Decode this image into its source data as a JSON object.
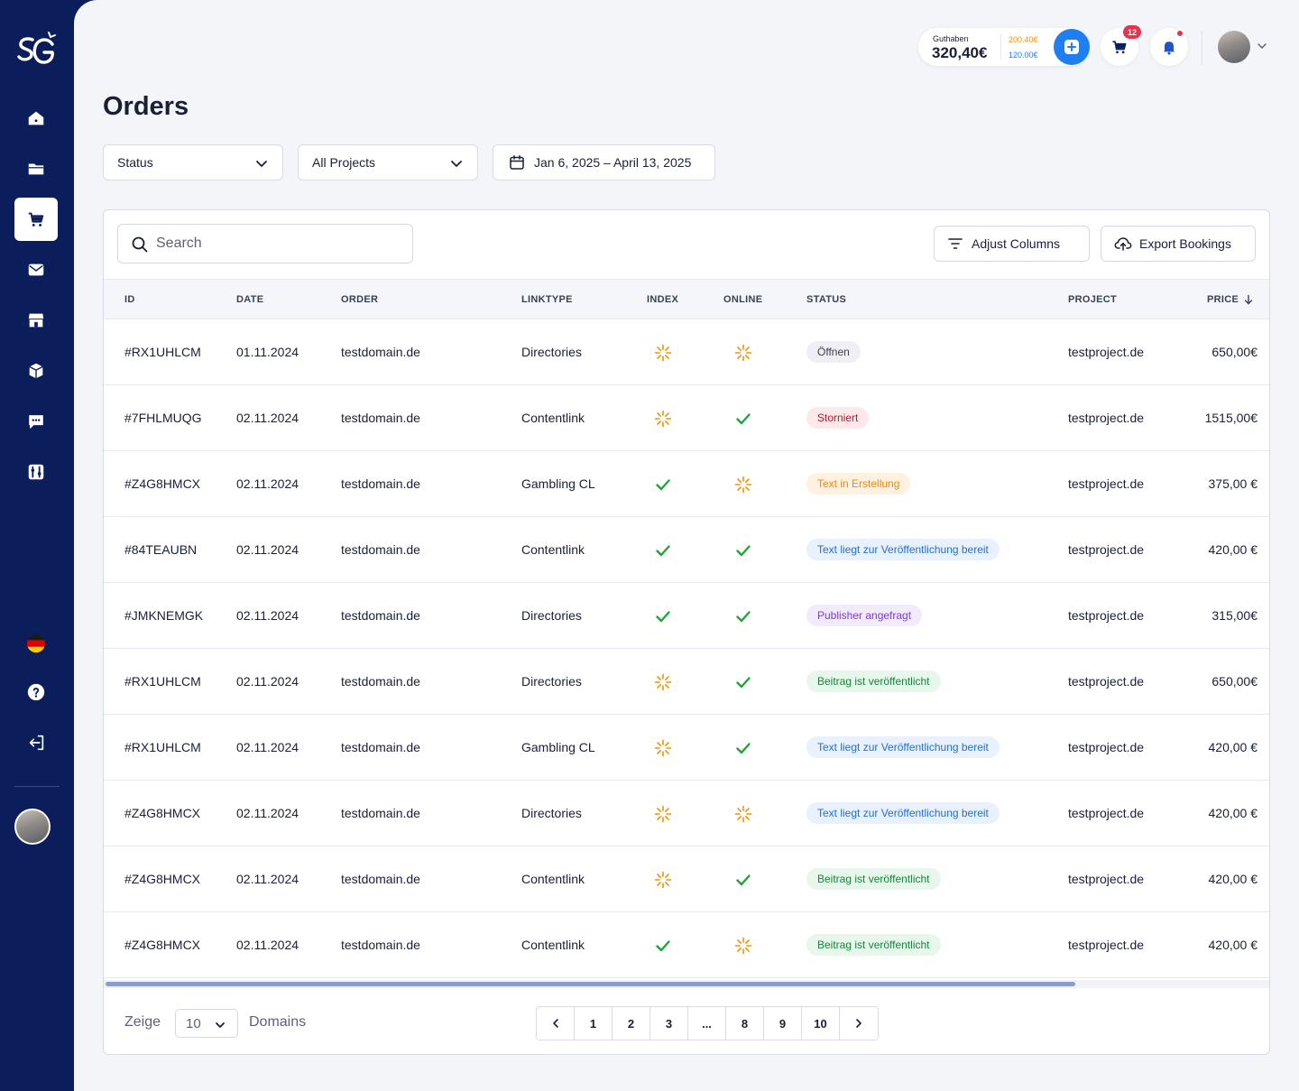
{
  "app": {
    "logo": "sg-logo"
  },
  "sidebar": {
    "items": [
      {
        "name": "home-icon",
        "active": false
      },
      {
        "name": "folder-icon",
        "active": false
      },
      {
        "name": "cart-icon",
        "active": true
      },
      {
        "name": "mail-icon",
        "active": false
      },
      {
        "name": "store-icon",
        "active": false
      },
      {
        "name": "box-icon",
        "active": false
      },
      {
        "name": "chat-icon",
        "active": false
      },
      {
        "name": "tools-icon",
        "active": false
      }
    ],
    "bottom": [
      "german-flag-icon",
      "help-icon",
      "logout-icon"
    ]
  },
  "topbar": {
    "balance_label": "Guthaben",
    "balance_value": "320,40€",
    "balance_sub1": "200.40€",
    "balance_sub2": "120.00€",
    "cart_count": "12"
  },
  "page": {
    "title": "Orders"
  },
  "filters": {
    "status": "Status",
    "projects": "All Projects",
    "date_range": "Jan 6, 2025 – April 13, 2025"
  },
  "toolbar": {
    "search_placeholder": "Search",
    "adjust_columns": "Adjust Columns",
    "export_bookings": "Export Bookings"
  },
  "table": {
    "headers": {
      "id": "ID",
      "date": "DATE",
      "order": "ORDER",
      "linktype": "LINKTYPE",
      "index": "INDEX",
      "online": "ONLINE",
      "status": "STATUS",
      "project": "PROJECT",
      "price": "PRICE"
    },
    "rows": [
      {
        "id": "#RX1UHLCM",
        "date": "01.11.2024",
        "order": "testdomain.de",
        "linktype": "Directories",
        "index": "pending",
        "online": "pending",
        "status": "Öffnen",
        "status_kind": "grey",
        "project": "testproject.de",
        "price": "650,00€"
      },
      {
        "id": "#7FHLMUQG",
        "date": "02.11.2024",
        "order": "testdomain.de",
        "linktype": "Contentlink",
        "index": "pending",
        "online": "done",
        "status": "Storniert",
        "status_kind": "red",
        "project": "testproject.de",
        "price": "1515,00€"
      },
      {
        "id": "#Z4G8HMCX",
        "date": "02.11.2024",
        "order": "testdomain.de",
        "linktype": "Gambling CL",
        "index": "done",
        "online": "pending",
        "status": "Text in Erstellung",
        "status_kind": "orange",
        "project": "testproject.de",
        "price": "375,00 €"
      },
      {
        "id": "#84TEAUBN",
        "date": "02.11.2024",
        "order": "testdomain.de",
        "linktype": "Contentlink",
        "index": "done",
        "online": "done",
        "status": "Text liegt zur Veröffentlichung bereit",
        "status_kind": "blue",
        "project": "testproject.de",
        "price": "420,00 €"
      },
      {
        "id": "#JMKNEMGK",
        "date": "02.11.2024",
        "order": "testdomain.de",
        "linktype": "Directories",
        "index": "done",
        "online": "done",
        "status": "Publisher angefragt",
        "status_kind": "purple",
        "project": "testproject.de",
        "price": "315,00€"
      },
      {
        "id": "#RX1UHLCM",
        "date": "02.11.2024",
        "order": "testdomain.de",
        "linktype": "Directories",
        "index": "pending",
        "online": "done",
        "status": "Beitrag ist veröffentlicht",
        "status_kind": "green",
        "project": "testproject.de",
        "price": "650,00€"
      },
      {
        "id": "#RX1UHLCM",
        "date": "02.11.2024",
        "order": "testdomain.de",
        "linktype": "Gambling CL",
        "index": "pending",
        "online": "done",
        "status": "Text liegt zur Veröffentlichung bereit",
        "status_kind": "blue",
        "project": "testproject.de",
        "price": "420,00 €"
      },
      {
        "id": "#Z4G8HMCX",
        "date": "02.11.2024",
        "order": "testdomain.de",
        "linktype": "Directories",
        "index": "pending",
        "online": "pending",
        "status": "Text liegt zur Veröffentlichung bereit",
        "status_kind": "blue",
        "project": "testproject.de",
        "price": "420,00 €"
      },
      {
        "id": "#Z4G8HMCX",
        "date": "02.11.2024",
        "order": "testdomain.de",
        "linktype": "Contentlink",
        "index": "pending",
        "online": "done",
        "status": "Beitrag ist veröffentlicht",
        "status_kind": "green",
        "project": "testproject.de",
        "price": "420,00 €"
      },
      {
        "id": "#Z4G8HMCX",
        "date": "02.11.2024",
        "order": "testdomain.de",
        "linktype": "Contentlink",
        "index": "done",
        "online": "pending",
        "status": "Beitrag ist veröffentlicht",
        "status_kind": "green",
        "project": "testproject.de",
        "price": "420,00 €"
      }
    ]
  },
  "footer": {
    "show_label": "Zeige",
    "per_page": "10",
    "domains_label": "Domains",
    "pages": [
      "1",
      "2",
      "3",
      "...",
      "8",
      "9",
      "10"
    ]
  },
  "colors": {
    "sidebar": "#0b1e5b",
    "accent": "#1f7ef0",
    "check": "#1fa53a",
    "pending": "#f39200"
  }
}
